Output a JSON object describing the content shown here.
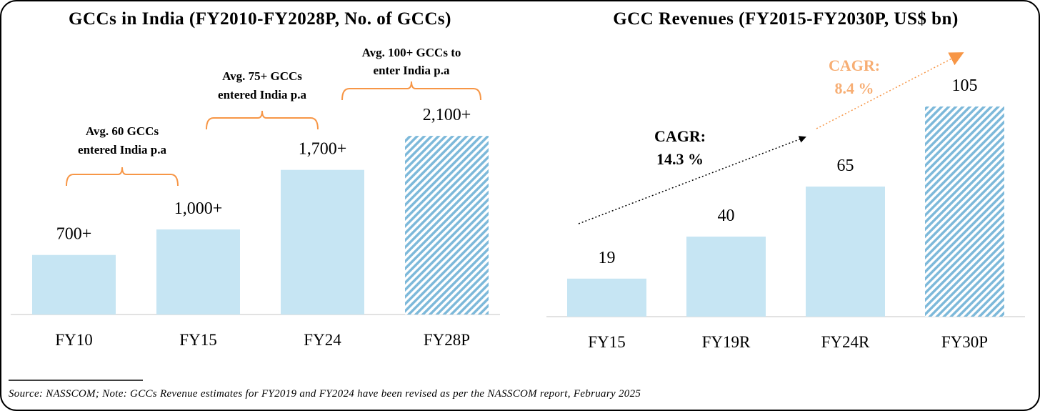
{
  "colors": {
    "bar": "#C6E5F3",
    "hatch": "#7DB9DA",
    "bracket": "#F79646",
    "cagr2": "#F7AE74",
    "axis": "#D9D9D9"
  },
  "chart_data": [
    {
      "type": "bar",
      "title": "GCCs in India (FY2010-FY2028P, No. of GCCs)",
      "categories": [
        "FY10",
        "FY15",
        "FY24",
        "FY28P"
      ],
      "values": [
        700,
        1000,
        1700,
        2100
      ],
      "labels": [
        "700+",
        "1,000+",
        "1,700+",
        "2,100+"
      ],
      "projected": [
        false,
        false,
        false,
        true
      ],
      "annotations": [
        {
          "lines": [
            "Avg. 60 GCCs",
            "entered India p.a"
          ],
          "from": "FY10",
          "to": "FY15"
        },
        {
          "lines": [
            "Avg. 75+ GCCs",
            "entered India p.a"
          ],
          "from": "FY15",
          "to": "FY24"
        },
        {
          "lines": [
            "Avg. 100+ GCCs to",
            "enter India p.a"
          ],
          "from": "FY24",
          "to": "FY28P"
        }
      ],
      "ylim": [
        0,
        2400
      ],
      "grid": false
    },
    {
      "type": "bar",
      "title": "GCC Revenues (FY2015-FY2030P, US$ bn)",
      "categories": [
        "FY15",
        "FY19R",
        "FY24R",
        "FY30P"
      ],
      "values": [
        19,
        40,
        65,
        105
      ],
      "labels": [
        "19",
        "40",
        "65",
        "105"
      ],
      "projected": [
        false,
        false,
        false,
        true
      ],
      "annotations": [
        {
          "lines": [
            "CAGR:",
            "14.3 %"
          ],
          "from": "FY15",
          "to": "FY24R"
        },
        {
          "lines": [
            "CAGR:",
            "8.4 %"
          ],
          "from": "FY24R",
          "to": "FY30P"
        }
      ],
      "ylim": [
        0,
        110
      ],
      "grid": false
    }
  ],
  "source": "Source: NASSCOM; Note: GCCs Revenue estimates for FY2019 and FY2024 have been revised as per the NASSCOM report, February 2025"
}
